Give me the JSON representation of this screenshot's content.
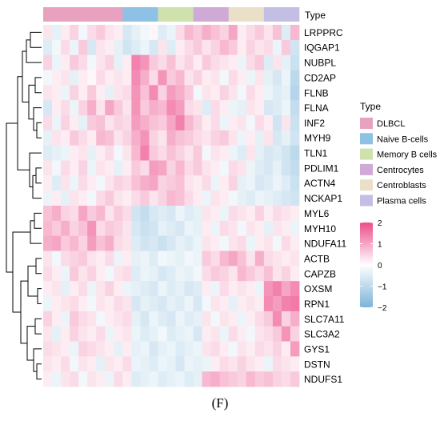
{
  "chart_data": {
    "type": "heatmap",
    "annotation_title": "Type",
    "legend_title": "Type",
    "rows": [
      "LRPPRC",
      "IQGAP1",
      "NUBPL",
      "CD2AP",
      "FLNB",
      "FLNA",
      "INF2",
      "MYH9",
      "TLN1",
      "PDLIM1",
      "ACTN4",
      "NCKAP1",
      "MYL6",
      "MYH10",
      "NDUFA11",
      "ACTB",
      "CAPZB",
      "OXSM",
      "RPN1",
      "SLC7A11",
      "SLC3A2",
      "GYS1",
      "DSTN",
      "NDUFS1"
    ],
    "groups": [
      {
        "name": "DLBCL",
        "color": "#E8A1BF",
        "n": 9
      },
      {
        "name": "Naive B-cells",
        "color": "#8EC1E3",
        "n": 4
      },
      {
        "name": "Memory B cells",
        "color": "#CFE2AE",
        "n": 4
      },
      {
        "name": "Centrocytes",
        "color": "#D0AAD6",
        "n": 4
      },
      {
        "name": "Centroblasts",
        "color": "#EAE0C8",
        "n": 4
      },
      {
        "name": "Plasma cells",
        "color": "#C3BFE4",
        "n": 4
      }
    ],
    "color_scale": {
      "min": -2,
      "max": 2,
      "low": "#7BB3D9",
      "mid": "#FFFFFF",
      "high": "#EC4D8A",
      "ticks": [
        2,
        1,
        0,
        -1,
        -2
      ]
    },
    "values": [
      [
        0.3,
        -0.4,
        0.2,
        0.5,
        -0.2,
        0.4,
        0.6,
        0.3,
        0.2,
        -0.6,
        -0.4,
        -0.2,
        0.1,
        -0.5,
        -0.3,
        0.4,
        0.8,
        0.6,
        0.9,
        0.7,
        0.5,
        1.0,
        0.2,
        0.4,
        0.6,
        0.3,
        0.7,
        -0.5,
        0.8
      ],
      [
        -0.5,
        -0.2,
        0.4,
        -0.3,
        0.6,
        -0.6,
        0.3,
        0.2,
        -0.4,
        -0.7,
        -0.5,
        -0.3,
        -0.6,
        0.3,
        -0.5,
        0.2,
        0.4,
        0.6,
        0.3,
        0.5,
        0.8,
        0.6,
        0.2,
        0.5,
        0.3,
        0.4,
        -0.3,
        0.6,
        -0.7
      ],
      [
        0.5,
        -0.3,
        0.2,
        0.6,
        0.4,
        -0.2,
        0.3,
        0.5,
        -0.4,
        0.2,
        1.4,
        1.2,
        0.6,
        0.4,
        0.7,
        0.3,
        0.5,
        0.2,
        0.6,
        0.4,
        0.3,
        0.2,
        -0.3,
        0.4,
        0.6,
        -0.5,
        0.3,
        -0.4,
        -0.8
      ],
      [
        -0.2,
        0.2,
        0.3,
        -0.4,
        0.2,
        0.1,
        0.4,
        0.2,
        0.3,
        0.2,
        1.3,
        0.9,
        0.4,
        1.2,
        0.6,
        0.8,
        0.3,
        0.5,
        0.2,
        0.3,
        -0.2,
        0.4,
        0.2,
        -0.3,
        0.3,
        -0.4,
        -0.6,
        -0.3,
        -1.0
      ],
      [
        0.3,
        0.2,
        -0.3,
        0.5,
        0.2,
        0.6,
        0.2,
        -0.4,
        0.3,
        0.4,
        1.2,
        0.7,
        1.3,
        0.5,
        1.1,
        0.9,
        0.6,
        -0.2,
        0.3,
        0.2,
        0.5,
        0.3,
        -0.2,
        0.4,
        0.2,
        -0.3,
        -0.5,
        -0.4,
        -1.1
      ],
      [
        -0.6,
        0.2,
        0.4,
        -0.3,
        0.5,
        0.9,
        0.3,
        1.0,
        0.6,
        0.3,
        1.2,
        0.6,
        0.9,
        0.8,
        1.3,
        1.1,
        0.4,
        0.3,
        -0.5,
        0.4,
        0.2,
        -0.3,
        -0.4,
        0.3,
        0.2,
        -0.6,
        -0.5,
        -0.3,
        -0.9
      ],
      [
        0.4,
        -0.3,
        0.5,
        0.2,
        -0.4,
        0.6,
        0.7,
        0.3,
        0.5,
        0.4,
        1.1,
        0.9,
        0.7,
        0.6,
        1.0,
        1.4,
        0.8,
        0.5,
        0.2,
        0.4,
        -0.3,
        0.2,
        0.3,
        -0.2,
        0.4,
        0.2,
        -0.7,
        0.3,
        -0.8
      ],
      [
        -0.4,
        0.3,
        0.2,
        0.6,
        0.4,
        0.2,
        0.8,
        0.7,
        0.3,
        0.5,
        0.9,
        1.2,
        0.5,
        0.3,
        0.9,
        0.7,
        0.6,
        0.4,
        0.3,
        0.5,
        0.6,
        0.3,
        -0.3,
        0.2,
        -0.4,
        0.3,
        -0.6,
        -0.4,
        -0.7
      ],
      [
        -0.5,
        -0.4,
        -0.3,
        0.2,
        0.3,
        -0.4,
        0.2,
        0.4,
        -0.2,
        0.3,
        0.8,
        1.4,
        0.6,
        0.4,
        0.7,
        0.5,
        0.3,
        0.6,
        -0.2,
        0.3,
        0.2,
        -0.3,
        -0.5,
        0.3,
        -0.4,
        -0.6,
        -0.5,
        -0.7,
        -1.0
      ],
      [
        0.3,
        -0.2,
        0.4,
        0.2,
        0.5,
        -0.3,
        0.3,
        0.2,
        -0.4,
        0.2,
        0.6,
        0.4,
        1.1,
        1.0,
        0.5,
        0.8,
        0.4,
        0.6,
        0.3,
        0.2,
        -0.2,
        0.4,
        0.3,
        -0.3,
        -0.5,
        -0.6,
        -0.4,
        -0.7,
        -0.9
      ],
      [
        0.2,
        -0.5,
        0.3,
        -0.3,
        0.4,
        0.2,
        -0.2,
        0.3,
        0.5,
        0.4,
        0.7,
        0.9,
        1.0,
        0.5,
        0.6,
        0.7,
        0.3,
        0.2,
        0.4,
        -0.3,
        0.2,
        0.5,
        -0.4,
        -0.3,
        -0.6,
        -0.5,
        -0.3,
        -0.5,
        -0.8
      ],
      [
        -0.3,
        0.2,
        -0.4,
        0.3,
        0.2,
        -0.2,
        0.4,
        0.6,
        0.3,
        0.2,
        0.4,
        0.6,
        0.3,
        0.5,
        0.8,
        0.7,
        0.4,
        0.2,
        -0.3,
        0.3,
        0.2,
        -0.2,
        -0.4,
        -0.5,
        -0.3,
        -0.4,
        -0.5,
        -0.6,
        -0.7
      ],
      [
        0.7,
        0.9,
        0.5,
        0.4,
        1.0,
        0.6,
        0.8,
        0.3,
        0.6,
        0.4,
        -0.7,
        -0.9,
        -0.6,
        -0.5,
        -0.6,
        -0.3,
        -0.5,
        -0.4,
        0.3,
        0.2,
        -0.3,
        0.4,
        0.3,
        0.2,
        0.5,
        0.2,
        0.4,
        0.3,
        0.2
      ],
      [
        0.8,
        0.6,
        0.9,
        0.5,
        0.7,
        1.2,
        0.4,
        0.6,
        0.5,
        0.3,
        -0.6,
        -0.8,
        -0.7,
        -0.4,
        -0.5,
        -0.6,
        -0.3,
        -0.4,
        0.2,
        -0.3,
        0.4,
        0.3,
        -0.2,
        0.3,
        0.2,
        -0.4,
        0.3,
        0.2,
        -0.3
      ],
      [
        0.9,
        1.0,
        0.6,
        0.8,
        0.5,
        1.1,
        0.7,
        0.9,
        0.4,
        0.3,
        -0.5,
        -0.7,
        -0.6,
        -0.8,
        -0.6,
        -0.4,
        -0.5,
        -0.3,
        0.3,
        0.2,
        -0.2,
        0.3,
        0.4,
        -0.3,
        0.2,
        0.3,
        -0.2,
        0.4,
        0.2
      ],
      [
        0.3,
        -0.2,
        0.4,
        0.5,
        0.6,
        0.3,
        0.2,
        0.4,
        -0.3,
        0.2,
        -0.4,
        -0.3,
        -0.5,
        -0.2,
        -0.3,
        -0.4,
        -0.2,
        -0.3,
        0.6,
        0.4,
        0.8,
        1.0,
        0.7,
        0.3,
        0.9,
        0.4,
        0.3,
        0.2,
        0.3
      ],
      [
        0.4,
        0.2,
        -0.3,
        0.6,
        0.3,
        0.5,
        0.2,
        -0.2,
        0.3,
        0.4,
        -0.5,
        -0.3,
        -0.4,
        -0.6,
        -0.5,
        -0.3,
        -0.4,
        -0.2,
        0.4,
        0.6,
        0.5,
        0.3,
        0.8,
        0.6,
        0.4,
        0.7,
        0.3,
        0.5,
        0.2
      ],
      [
        0.2,
        0.3,
        -0.4,
        0.2,
        0.4,
        -0.3,
        0.3,
        0.5,
        0.2,
        -0.3,
        -0.4,
        -0.5,
        -0.6,
        -0.3,
        -0.5,
        -0.4,
        -0.6,
        -0.5,
        0.2,
        -0.3,
        0.4,
        0.2,
        0.3,
        0.2,
        -0.3,
        1.2,
        1.4,
        1.0,
        1.3
      ],
      [
        -0.3,
        0.2,
        0.3,
        0.4,
        0.2,
        -0.2,
        0.3,
        0.2,
        0.4,
        0.3,
        -0.6,
        -0.4,
        -0.5,
        -0.6,
        -0.4,
        -0.5,
        -0.3,
        -0.6,
        -0.2,
        0.3,
        0.2,
        -0.4,
        0.2,
        0.3,
        0.2,
        1.3,
        1.1,
        1.4,
        1.5
      ],
      [
        0.5,
        0.2,
        -0.3,
        0.6,
        0.4,
        0.3,
        -0.2,
        0.2,
        0.3,
        0.4,
        -0.4,
        -0.6,
        -0.3,
        -0.5,
        -0.6,
        -0.3,
        -0.5,
        -0.4,
        0.3,
        -0.2,
        0.3,
        0.2,
        -0.3,
        0.2,
        0.4,
        0.6,
        1.3,
        0.5,
        0.9
      ],
      [
        0.3,
        -0.4,
        0.2,
        0.5,
        0.3,
        0.2,
        0.4,
        -0.3,
        0.2,
        0.3,
        -0.3,
        -0.5,
        -0.4,
        -0.2,
        -0.5,
        -0.4,
        -0.3,
        -0.6,
        0.2,
        0.3,
        -0.3,
        0.4,
        0.2,
        -0.2,
        0.3,
        0.4,
        0.6,
        1.2,
        0.5
      ],
      [
        0.4,
        0.3,
        0.2,
        -0.3,
        0.5,
        0.4,
        0.3,
        0.2,
        -0.4,
        0.2,
        -0.4,
        -0.3,
        -0.6,
        -0.4,
        -0.3,
        -0.5,
        -0.4,
        -0.3,
        0.3,
        0.4,
        0.2,
        -0.2,
        0.3,
        0.2,
        0.4,
        0.3,
        0.5,
        0.2,
        1.1
      ],
      [
        0.3,
        0.2,
        0.4,
        -0.2,
        0.3,
        0.2,
        -0.4,
        0.3,
        0.2,
        0.4,
        -0.3,
        -0.4,
        -0.5,
        -0.3,
        -0.4,
        -0.6,
        -0.3,
        -0.4,
        -0.3,
        0.2,
        0.4,
        0.3,
        0.5,
        0.3,
        0.2,
        -0.3,
        0.4,
        0.3,
        0.2
      ],
      [
        0.2,
        -0.3,
        0.3,
        0.4,
        -0.2,
        0.3,
        0.2,
        -0.3,
        0.4,
        0.2,
        -0.5,
        -0.4,
        -0.3,
        -0.5,
        -0.4,
        -0.3,
        -0.5,
        -0.4,
        0.8,
        0.9,
        0.7,
        0.6,
        0.5,
        0.8,
        0.6,
        0.7,
        0.5,
        0.4,
        0.6
      ]
    ]
  },
  "caption": "(F)"
}
